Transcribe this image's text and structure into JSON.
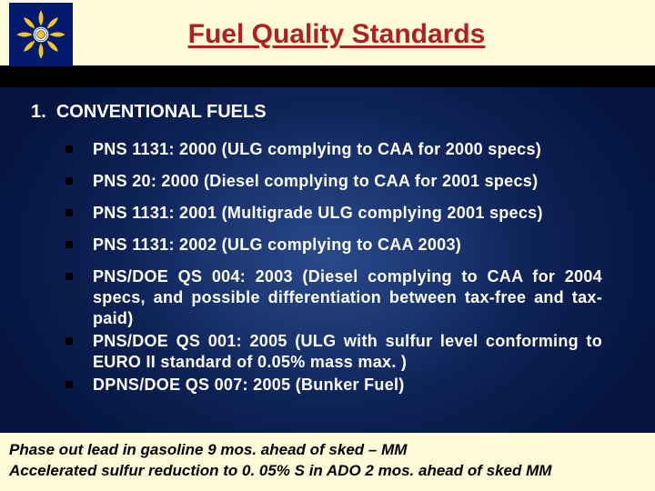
{
  "title": "Fuel Quality Standards",
  "section_number": "1.",
  "section_title": "CONVENTIONAL FUELS",
  "bullets": [
    {
      "text": "PNS 1131: 2000 (ULG complying to CAA for 2000 specs)",
      "justify": false,
      "tight": false
    },
    {
      "text": "PNS 20: 2000 (Diesel complying to CAA for 2001 specs)",
      "justify": false,
      "tight": false
    },
    {
      "text": "PNS 1131: 2001 (Multigrade ULG complying 2001 specs)",
      "justify": false,
      "tight": false
    },
    {
      "text": "PNS 1131: 2002 (ULG complying to CAA 2003)",
      "justify": false,
      "tight": false
    },
    {
      "text": "PNS/DOE QS 004: 2003 (Diesel complying to CAA for 2004 specs, and possible differentiation between tax-free and tax-paid)",
      "justify": true,
      "tight": true
    },
    {
      "text": "PNS/DOE QS 001: 2005 (ULG with sulfur level conforming to EURO II standard of 0.05% mass max. )",
      "justify": true,
      "tight": true
    },
    {
      "text": "DPNS/DOE QS 007: 2005 (Bunker Fuel)",
      "justify": false,
      "tight": false
    }
  ],
  "footer_line1": "Phase out lead in gasoline 9 mos. ahead of sked – MM",
  "footer_line2": "Accelerated sulfur reduction to 0. 05% S in ADO 2 mos. ahead of sked MM",
  "colors": {
    "header_bg": "#fdfbd8",
    "title_color": "#b02020",
    "logo_bg": "#041a6e",
    "logo_petal": "#f5c518",
    "bg_center": "#2a4a8a",
    "bg_edge": "#051540",
    "text": "#ffffff",
    "bullet_square": "#000000",
    "footer_bg": "#fdfbd8",
    "footer_text": "#000000"
  }
}
